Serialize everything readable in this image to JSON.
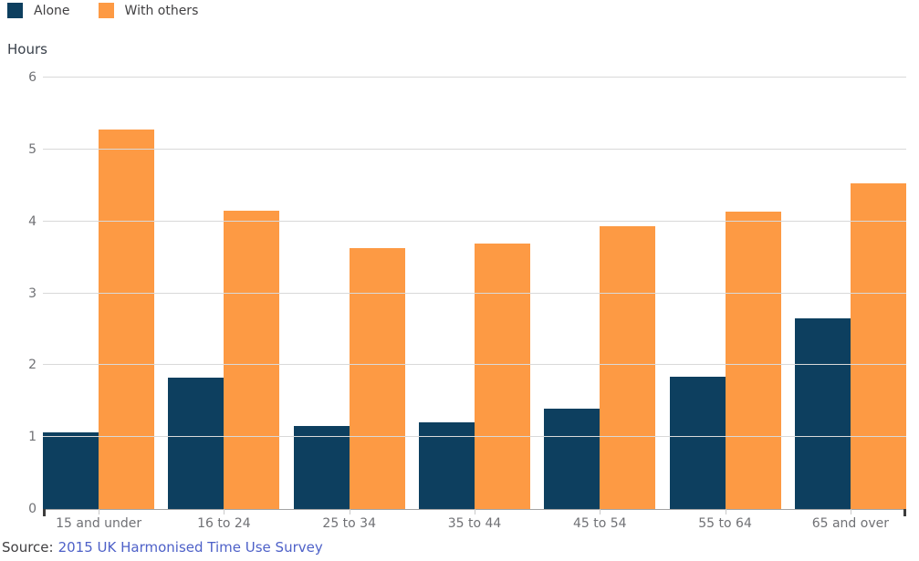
{
  "legend": {
    "items": [
      {
        "label": "Alone",
        "color": "#0d3f5f"
      },
      {
        "label": "With others",
        "color": "#fd9a44"
      }
    ]
  },
  "chart_data": {
    "type": "bar",
    "title": "",
    "ylabel": "Hours",
    "xlabel": "",
    "categories": [
      "15 and under",
      "16 to 24",
      "25 to 34",
      "35 to 44",
      "45 to 54",
      "55 to 64",
      "65 and over"
    ],
    "series": [
      {
        "name": "Alone",
        "color": "#0d3f5f",
        "values": [
          1.07,
          1.83,
          1.15,
          1.2,
          1.4,
          1.84,
          2.65
        ]
      },
      {
        "name": "With others",
        "color": "#fd9a44",
        "values": [
          5.28,
          4.15,
          3.63,
          3.69,
          3.93,
          4.13,
          4.53
        ]
      }
    ],
    "ylim": [
      0,
      6
    ],
    "yticks": [
      0,
      1,
      2,
      3,
      4,
      5,
      6
    ],
    "grid": true,
    "legend_position": "top-left",
    "colors": {
      "gridline": "#d9d9d9",
      "axis_line": "#a3a3a3",
      "tick_text": "#707175"
    }
  },
  "source": {
    "prefix": "Source:",
    "link_text": "2015 UK Harmonised Time Use Survey"
  }
}
